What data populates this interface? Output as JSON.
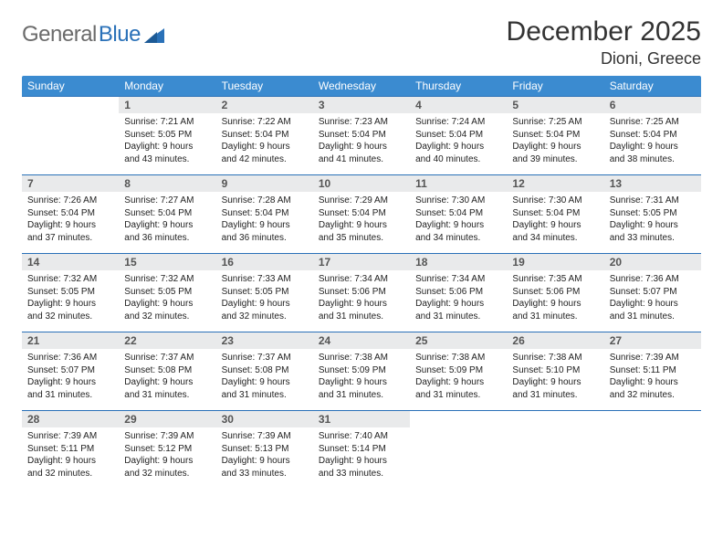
{
  "brand": {
    "part1": "General",
    "part2": "Blue",
    "accent_color": "#2a71b8",
    "muted_color": "#6b6b6b"
  },
  "title": "December 2025",
  "location": "Dioni, Greece",
  "header_bg": "#3b8bd0",
  "header_fg": "#ffffff",
  "daynum_bg": "#e9eaeb",
  "row_border": "#2a71b8",
  "weekdays": [
    "Sunday",
    "Monday",
    "Tuesday",
    "Wednesday",
    "Thursday",
    "Friday",
    "Saturday"
  ],
  "weeks": [
    [
      {
        "n": "",
        "sr": "",
        "ss": "",
        "dl": ""
      },
      {
        "n": "1",
        "sr": "7:21 AM",
        "ss": "5:05 PM",
        "dl": "9 hours and 43 minutes."
      },
      {
        "n": "2",
        "sr": "7:22 AM",
        "ss": "5:04 PM",
        "dl": "9 hours and 42 minutes."
      },
      {
        "n": "3",
        "sr": "7:23 AM",
        "ss": "5:04 PM",
        "dl": "9 hours and 41 minutes."
      },
      {
        "n": "4",
        "sr": "7:24 AM",
        "ss": "5:04 PM",
        "dl": "9 hours and 40 minutes."
      },
      {
        "n": "5",
        "sr": "7:25 AM",
        "ss": "5:04 PM",
        "dl": "9 hours and 39 minutes."
      },
      {
        "n": "6",
        "sr": "7:25 AM",
        "ss": "5:04 PM",
        "dl": "9 hours and 38 minutes."
      }
    ],
    [
      {
        "n": "7",
        "sr": "7:26 AM",
        "ss": "5:04 PM",
        "dl": "9 hours and 37 minutes."
      },
      {
        "n": "8",
        "sr": "7:27 AM",
        "ss": "5:04 PM",
        "dl": "9 hours and 36 minutes."
      },
      {
        "n": "9",
        "sr": "7:28 AM",
        "ss": "5:04 PM",
        "dl": "9 hours and 36 minutes."
      },
      {
        "n": "10",
        "sr": "7:29 AM",
        "ss": "5:04 PM",
        "dl": "9 hours and 35 minutes."
      },
      {
        "n": "11",
        "sr": "7:30 AM",
        "ss": "5:04 PM",
        "dl": "9 hours and 34 minutes."
      },
      {
        "n": "12",
        "sr": "7:30 AM",
        "ss": "5:04 PM",
        "dl": "9 hours and 34 minutes."
      },
      {
        "n": "13",
        "sr": "7:31 AM",
        "ss": "5:05 PM",
        "dl": "9 hours and 33 minutes."
      }
    ],
    [
      {
        "n": "14",
        "sr": "7:32 AM",
        "ss": "5:05 PM",
        "dl": "9 hours and 32 minutes."
      },
      {
        "n": "15",
        "sr": "7:32 AM",
        "ss": "5:05 PM",
        "dl": "9 hours and 32 minutes."
      },
      {
        "n": "16",
        "sr": "7:33 AM",
        "ss": "5:05 PM",
        "dl": "9 hours and 32 minutes."
      },
      {
        "n": "17",
        "sr": "7:34 AM",
        "ss": "5:06 PM",
        "dl": "9 hours and 31 minutes."
      },
      {
        "n": "18",
        "sr": "7:34 AM",
        "ss": "5:06 PM",
        "dl": "9 hours and 31 minutes."
      },
      {
        "n": "19",
        "sr": "7:35 AM",
        "ss": "5:06 PM",
        "dl": "9 hours and 31 minutes."
      },
      {
        "n": "20",
        "sr": "7:36 AM",
        "ss": "5:07 PM",
        "dl": "9 hours and 31 minutes."
      }
    ],
    [
      {
        "n": "21",
        "sr": "7:36 AM",
        "ss": "5:07 PM",
        "dl": "9 hours and 31 minutes."
      },
      {
        "n": "22",
        "sr": "7:37 AM",
        "ss": "5:08 PM",
        "dl": "9 hours and 31 minutes."
      },
      {
        "n": "23",
        "sr": "7:37 AM",
        "ss": "5:08 PM",
        "dl": "9 hours and 31 minutes."
      },
      {
        "n": "24",
        "sr": "7:38 AM",
        "ss": "5:09 PM",
        "dl": "9 hours and 31 minutes."
      },
      {
        "n": "25",
        "sr": "7:38 AM",
        "ss": "5:09 PM",
        "dl": "9 hours and 31 minutes."
      },
      {
        "n": "26",
        "sr": "7:38 AM",
        "ss": "5:10 PM",
        "dl": "9 hours and 31 minutes."
      },
      {
        "n": "27",
        "sr": "7:39 AM",
        "ss": "5:11 PM",
        "dl": "9 hours and 32 minutes."
      }
    ],
    [
      {
        "n": "28",
        "sr": "7:39 AM",
        "ss": "5:11 PM",
        "dl": "9 hours and 32 minutes."
      },
      {
        "n": "29",
        "sr": "7:39 AM",
        "ss": "5:12 PM",
        "dl": "9 hours and 32 minutes."
      },
      {
        "n": "30",
        "sr": "7:39 AM",
        "ss": "5:13 PM",
        "dl": "9 hours and 33 minutes."
      },
      {
        "n": "31",
        "sr": "7:40 AM",
        "ss": "5:14 PM",
        "dl": "9 hours and 33 minutes."
      },
      {
        "n": "",
        "sr": "",
        "ss": "",
        "dl": ""
      },
      {
        "n": "",
        "sr": "",
        "ss": "",
        "dl": ""
      },
      {
        "n": "",
        "sr": "",
        "ss": "",
        "dl": ""
      }
    ]
  ],
  "labels": {
    "sunrise": "Sunrise:",
    "sunset": "Sunset:",
    "daylight": "Daylight:"
  }
}
